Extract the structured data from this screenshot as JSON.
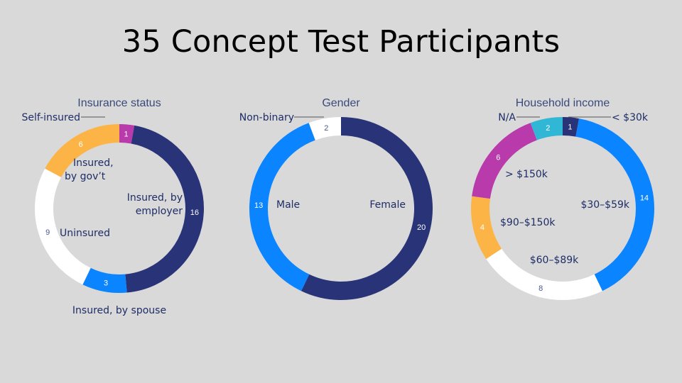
{
  "slide": {
    "title": "35 Concept Test Participants"
  },
  "chart_data": [
    {
      "type": "pie",
      "donut": true,
      "title": "Insurance status",
      "slices": [
        {
          "label": "Self-insured",
          "value": 1,
          "color": "#b83aab"
        },
        {
          "label": "Insured, by employer",
          "value": 16,
          "color": "#283378"
        },
        {
          "label": "Insured, by spouse",
          "value": 3,
          "color": "#0a84ff"
        },
        {
          "label": "Uninsured",
          "value": 9,
          "color": "#ffffff"
        },
        {
          "label": "Insured, by gov’t",
          "value": 6,
          "color": "#fcb447"
        }
      ]
    },
    {
      "type": "pie",
      "donut": true,
      "title": "Gender",
      "slices": [
        {
          "label": "Female",
          "value": 20,
          "color": "#283378"
        },
        {
          "label": "Male",
          "value": 13,
          "color": "#0a84ff"
        },
        {
          "label": "Non-binary",
          "value": 2,
          "color": "#ffffff"
        }
      ]
    },
    {
      "type": "pie",
      "donut": true,
      "title": "Household income",
      "slices": [
        {
          "label": "< $30k",
          "value": 1,
          "color": "#283378"
        },
        {
          "label": "$30–$59k",
          "value": 14,
          "color": "#0a84ff"
        },
        {
          "label": "$60–$89k",
          "value": 8,
          "color": "#ffffff"
        },
        {
          "label": "$90–$150k",
          "value": 4,
          "color": "#fcb447"
        },
        {
          "label": "> $150k",
          "value": 6,
          "color": "#b83aab"
        },
        {
          "label": "N/A",
          "value": 2,
          "color": "#31b7d6"
        }
      ]
    }
  ]
}
